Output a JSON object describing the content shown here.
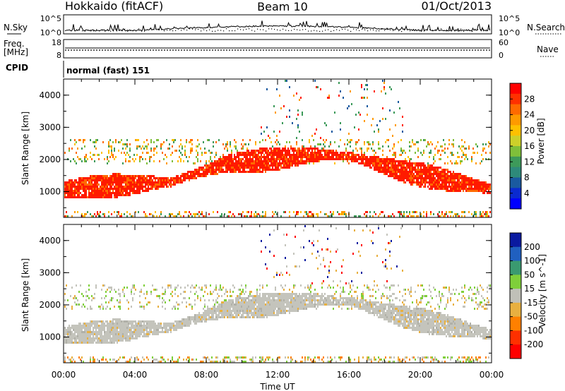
{
  "header": {
    "title_left": "Hokkaido (fitACF)",
    "title_center": "Beam 10",
    "title_right": "01/Oct/2013"
  },
  "top_panels": {
    "nsky_label": "N.Sky",
    "nsky_ticks": [
      "10^5",
      "10^0"
    ],
    "nsearch_label": "N.Search",
    "nsearch_ticks_right": [
      "10^5",
      "10^0"
    ],
    "freq_label": "Freq.",
    "freq_unit": "[MHz]",
    "freq_ticks": [
      "18",
      "8"
    ],
    "nave_label": "Nave",
    "nave_ticks_right": [
      "60",
      "0"
    ],
    "cpid_label": "CPID",
    "cpid_value": "normal (fast) 151"
  },
  "chart_data": [
    {
      "type": "heatmap",
      "title": "",
      "ylabel": "Slant Range [km]",
      "xlabel": "",
      "y_ticks": [
        "1000",
        "2000",
        "3000",
        "4000"
      ],
      "ylim": [
        200,
        4500
      ],
      "xlim_hours": [
        0,
        24
      ],
      "colorbar": {
        "label": "Power [dB]",
        "ticks": [
          "28",
          "24",
          "20",
          "16",
          "12",
          "8",
          "4"
        ],
        "colors": [
          "#ff0000",
          "#ff3000",
          "#ff6a00",
          "#ff9a00",
          "#ffc000",
          "#cdd02a",
          "#7fbf3a",
          "#3d9a5a",
          "#2e8a7a",
          "#1a5aa0",
          "#0a2ad0",
          "#0000ff"
        ]
      }
    },
    {
      "type": "heatmap",
      "title": "",
      "ylabel": "Slant Range [km]",
      "xlabel": "Time UT",
      "y_ticks": [
        "1000",
        "2000",
        "3000",
        "4000"
      ],
      "x_ticks": [
        "00:00",
        "04:00",
        "08:00",
        "12:00",
        "16:00",
        "20:00",
        "00:00"
      ],
      "ylim": [
        200,
        4500
      ],
      "xlim_hours": [
        0,
        24
      ],
      "colorbar": {
        "label": "Velocity [m s^-1]",
        "ticks": [
          "200",
          "100",
          "50",
          "15",
          "-15",
          "-50",
          "-100",
          "-200"
        ],
        "colors": [
          "#0a1aa0",
          "#2060c0",
          "#3a9a70",
          "#7fcf3a",
          "#c0c0b8",
          "#e8b040",
          "#ff8000",
          "#ff3000",
          "#ff0000"
        ]
      }
    }
  ]
}
